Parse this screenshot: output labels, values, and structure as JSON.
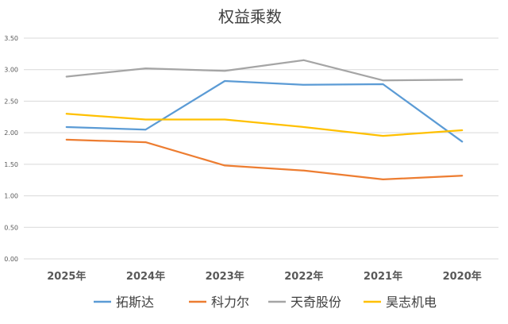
{
  "chart_data": {
    "type": "line",
    "title": "权益乘数",
    "categories": [
      "2025年",
      "2024年",
      "2023年",
      "2022年",
      "2021年",
      "2020年"
    ],
    "yticks": [
      "0.00",
      "0.50",
      "1.00",
      "1.50",
      "2.00",
      "2.50",
      "3.00",
      "3.50"
    ],
    "ylim": [
      0,
      3.5
    ],
    "grid": true,
    "legend_position": "bottom",
    "series": [
      {
        "name": "拓斯达",
        "color": "#5B9BD5",
        "values": [
          2.09,
          2.05,
          2.82,
          2.76,
          2.77,
          1.86
        ]
      },
      {
        "name": "科力尔",
        "color": "#ED7D31",
        "values": [
          1.89,
          1.85,
          1.48,
          1.4,
          1.26,
          1.32
        ]
      },
      {
        "name": "天奇股份",
        "color": "#A5A5A5",
        "values": [
          2.89,
          3.02,
          2.98,
          3.15,
          2.83,
          2.84
        ]
      },
      {
        "name": "昊志机电",
        "color": "#FFC000",
        "values": [
          2.3,
          2.21,
          2.21,
          2.09,
          1.95,
          2.04
        ]
      }
    ]
  }
}
